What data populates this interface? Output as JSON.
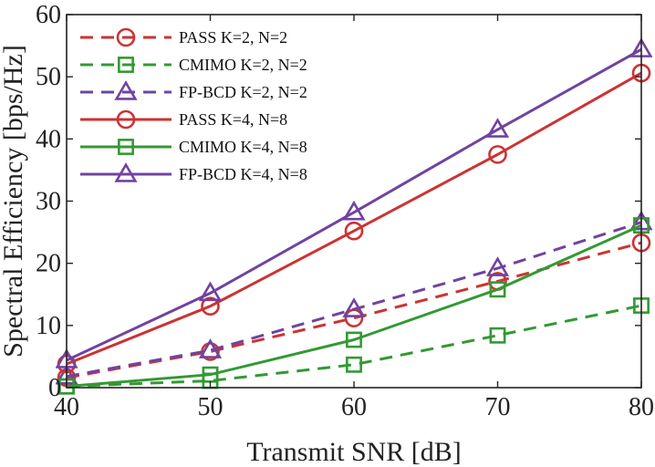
{
  "chart_data": {
    "type": "line",
    "title": "",
    "xlabel": "Transmit SNR [dB]",
    "ylabel": "Spectral Efficiency [bps/Hz]",
    "x": [
      40,
      50,
      60,
      70,
      80
    ],
    "xlim": [
      40,
      80
    ],
    "ylim": [
      0,
      60
    ],
    "x_ticks": [
      40,
      50,
      60,
      70,
      80
    ],
    "y_ticks": [
      0,
      10,
      20,
      30,
      40,
      50,
      60
    ],
    "grid": false,
    "legend_position": "top-left",
    "series": [
      {
        "name": "PASS K=2, N=2",
        "values": [
          1.6,
          5.8,
          11.2,
          17.1,
          23.3
        ],
        "color": "#cc3333",
        "dash": "dashed",
        "marker": "circle"
      },
      {
        "name": "CMIMO K=2, N=2",
        "values": [
          0.2,
          1.1,
          3.7,
          8.4,
          13.2
        ],
        "color": "#339933",
        "dash": "dashed",
        "marker": "square"
      },
      {
        "name": "FP-BCD K=2, N=2",
        "values": [
          1.8,
          6.0,
          12.6,
          19.2,
          26.6
        ],
        "color": "#7043a0",
        "dash": "dashed",
        "marker": "triangle"
      },
      {
        "name": "PASS K=4, N=8",
        "values": [
          3.8,
          13.1,
          25.2,
          37.5,
          50.6
        ],
        "color": "#cc3333",
        "dash": "solid",
        "marker": "circle"
      },
      {
        "name": "CMIMO K=4, N=8",
        "values": [
          0.2,
          2.1,
          7.7,
          15.8,
          26.1
        ],
        "color": "#339933",
        "dash": "solid",
        "marker": "square"
      },
      {
        "name": "FP-BCD K=4, N=8",
        "values": [
          4.4,
          15.2,
          28.2,
          41.5,
          54.4
        ],
        "color": "#7043a0",
        "dash": "solid",
        "marker": "triangle"
      }
    ]
  }
}
